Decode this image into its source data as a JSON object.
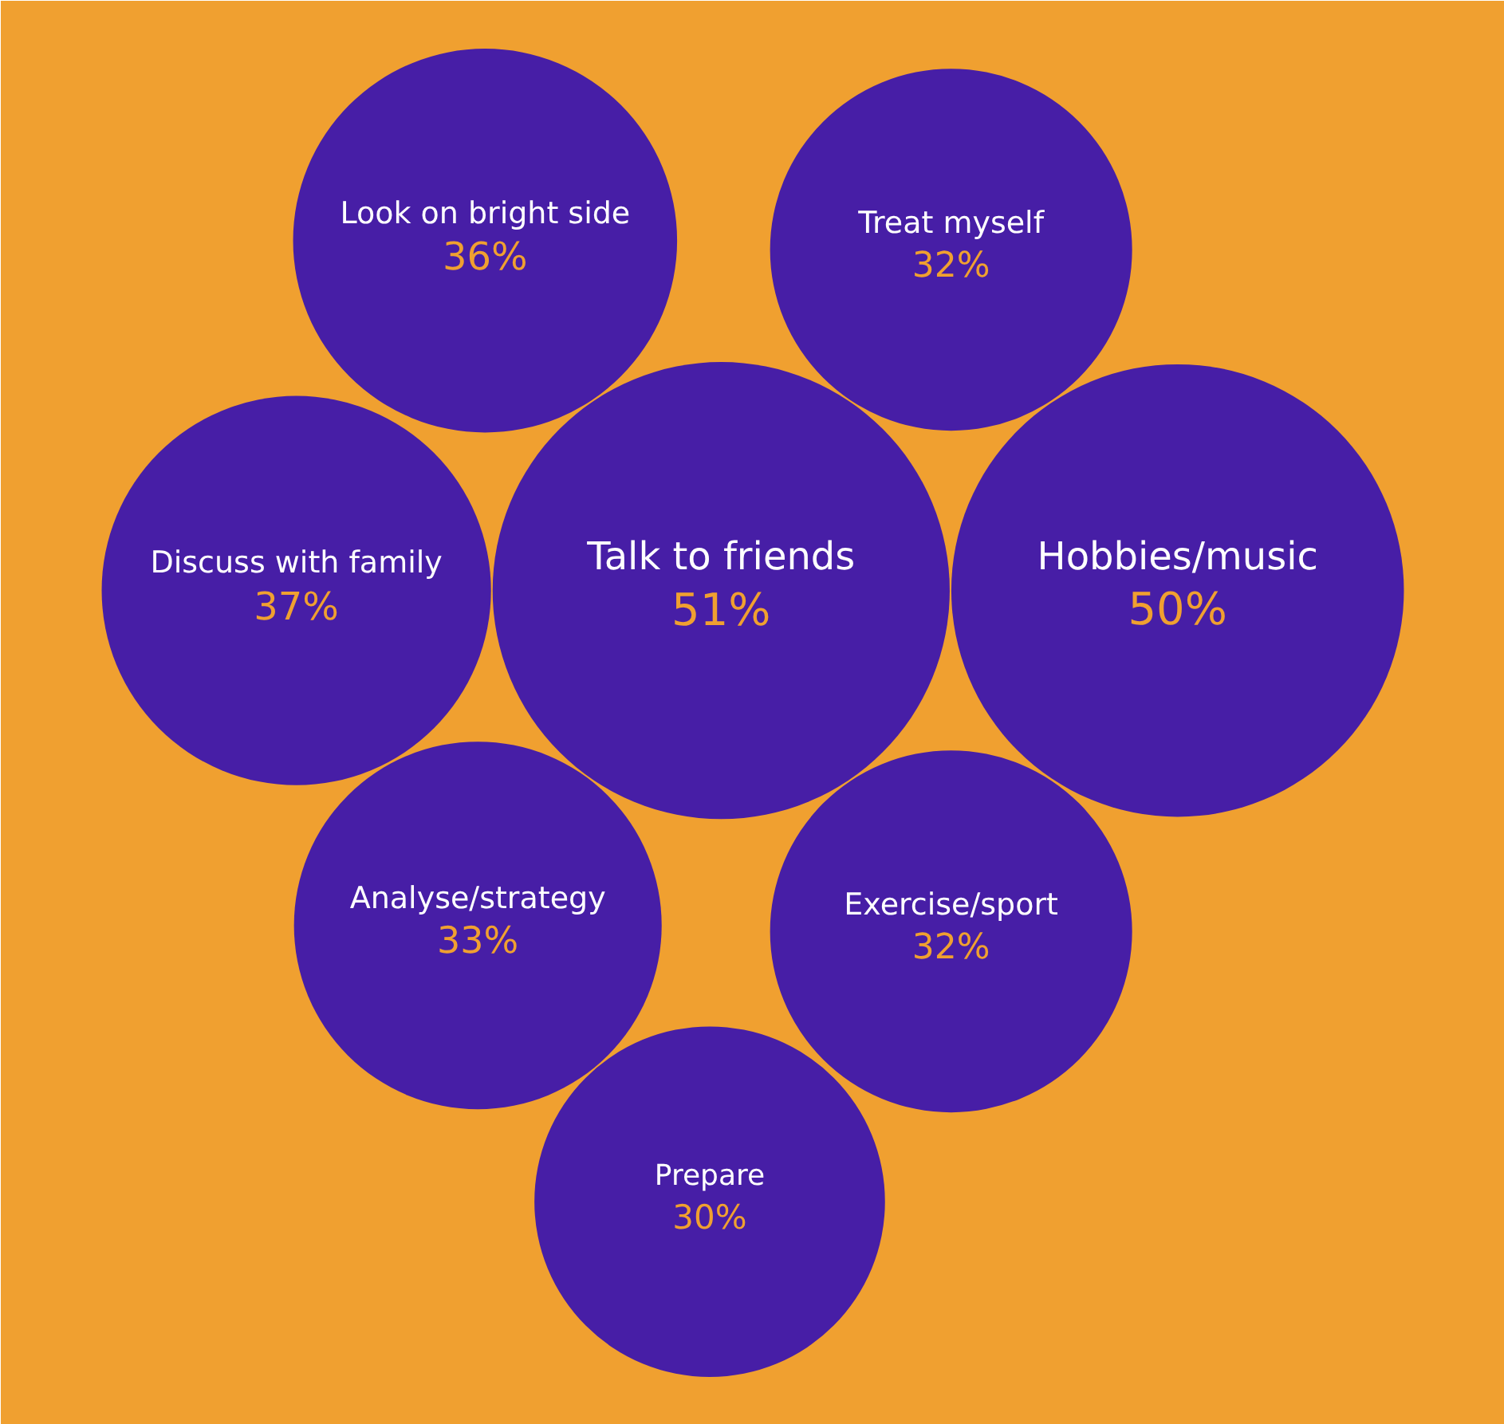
{
  "chart_data": {
    "type": "other",
    "categories": [
      "Look on bright side",
      "Discuss with family",
      "Analyse/strategy",
      "Talk to friends",
      "Hobbies/music",
      "Treat myself",
      "Exercise/sport",
      "Prepare"
    ],
    "values": [
      36,
      37,
      33,
      51,
      50,
      32,
      32,
      30
    ],
    "value_labels": [
      "36%",
      "37%",
      "33%",
      "51%",
      "50%",
      "32%",
      "32%",
      "30%"
    ],
    "color": "#471ea6"
  }
}
